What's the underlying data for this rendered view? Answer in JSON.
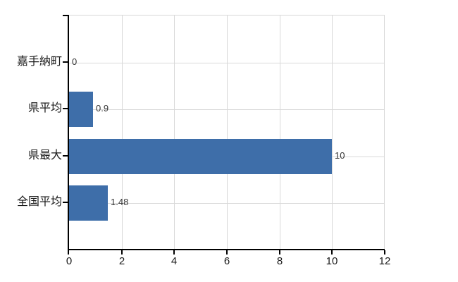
{
  "chart_data": {
    "type": "bar",
    "orientation": "horizontal",
    "categories": [
      "嘉手納町",
      "県平均",
      "県最大",
      "全国平均"
    ],
    "values": [
      0,
      0.9,
      10,
      1.48
    ],
    "data_labels": [
      "0",
      "0.9",
      "10",
      "1.48"
    ],
    "x_ticks": [
      0,
      2,
      4,
      6,
      8,
      10,
      12
    ],
    "xlim": [
      0,
      12
    ],
    "grid": true,
    "colors": {
      "bar": "#3e6ea9",
      "grid": "#d9d9d9",
      "axis": "#000000",
      "category_label": "#1a1a1a",
      "value_label": "#333333",
      "background": "#ffffff"
    }
  }
}
